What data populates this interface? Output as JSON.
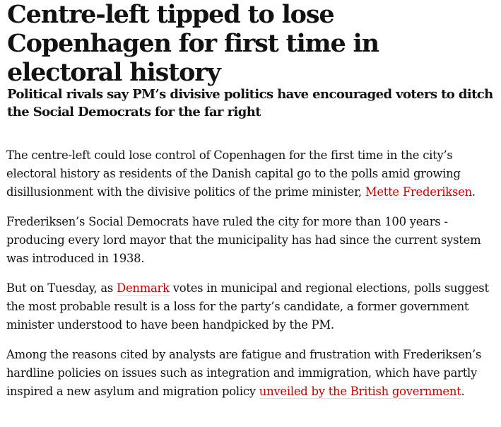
{
  "article": {
    "headline": "Centre-left tipped to lose Copenhagen for first time in electoral history",
    "standfirst": "Political rivals say PM’s divisive politics have encouraged voters to ditch the Social Democrats for the far right",
    "paragraphs": [
      {
        "before": "The centre-left could lose control of Copenhagen for the first time in the city’s electoral history as residents of the Danish capital go to the polls amid growing disillusionment with the divisive politics of the prime minister, ",
        "link": "Mette Frederiksen",
        "after": "."
      },
      {
        "text": "Frederiksen’s Social Democrats have ruled the city for more than 100 years - producing every lord mayor that the municipality has had since the current system was introduced in 1938."
      },
      {
        "before": "But on Tuesday, as ",
        "link": "Denmark",
        "after": " votes in municipal and regional elections, polls suggest the most probable result is a loss for the party’s candidate, a former government minister understood to have been handpicked by the PM."
      },
      {
        "before": "Among the reasons cited by analysts are fatigue and frustration with Frederiksen’s hardline policies on issues such as integration and immigration, which have partly inspired a new asylum and migration policy ",
        "link": "unveiled by the British government",
        "after": "."
      }
    ],
    "link_color": "#c70000"
  }
}
